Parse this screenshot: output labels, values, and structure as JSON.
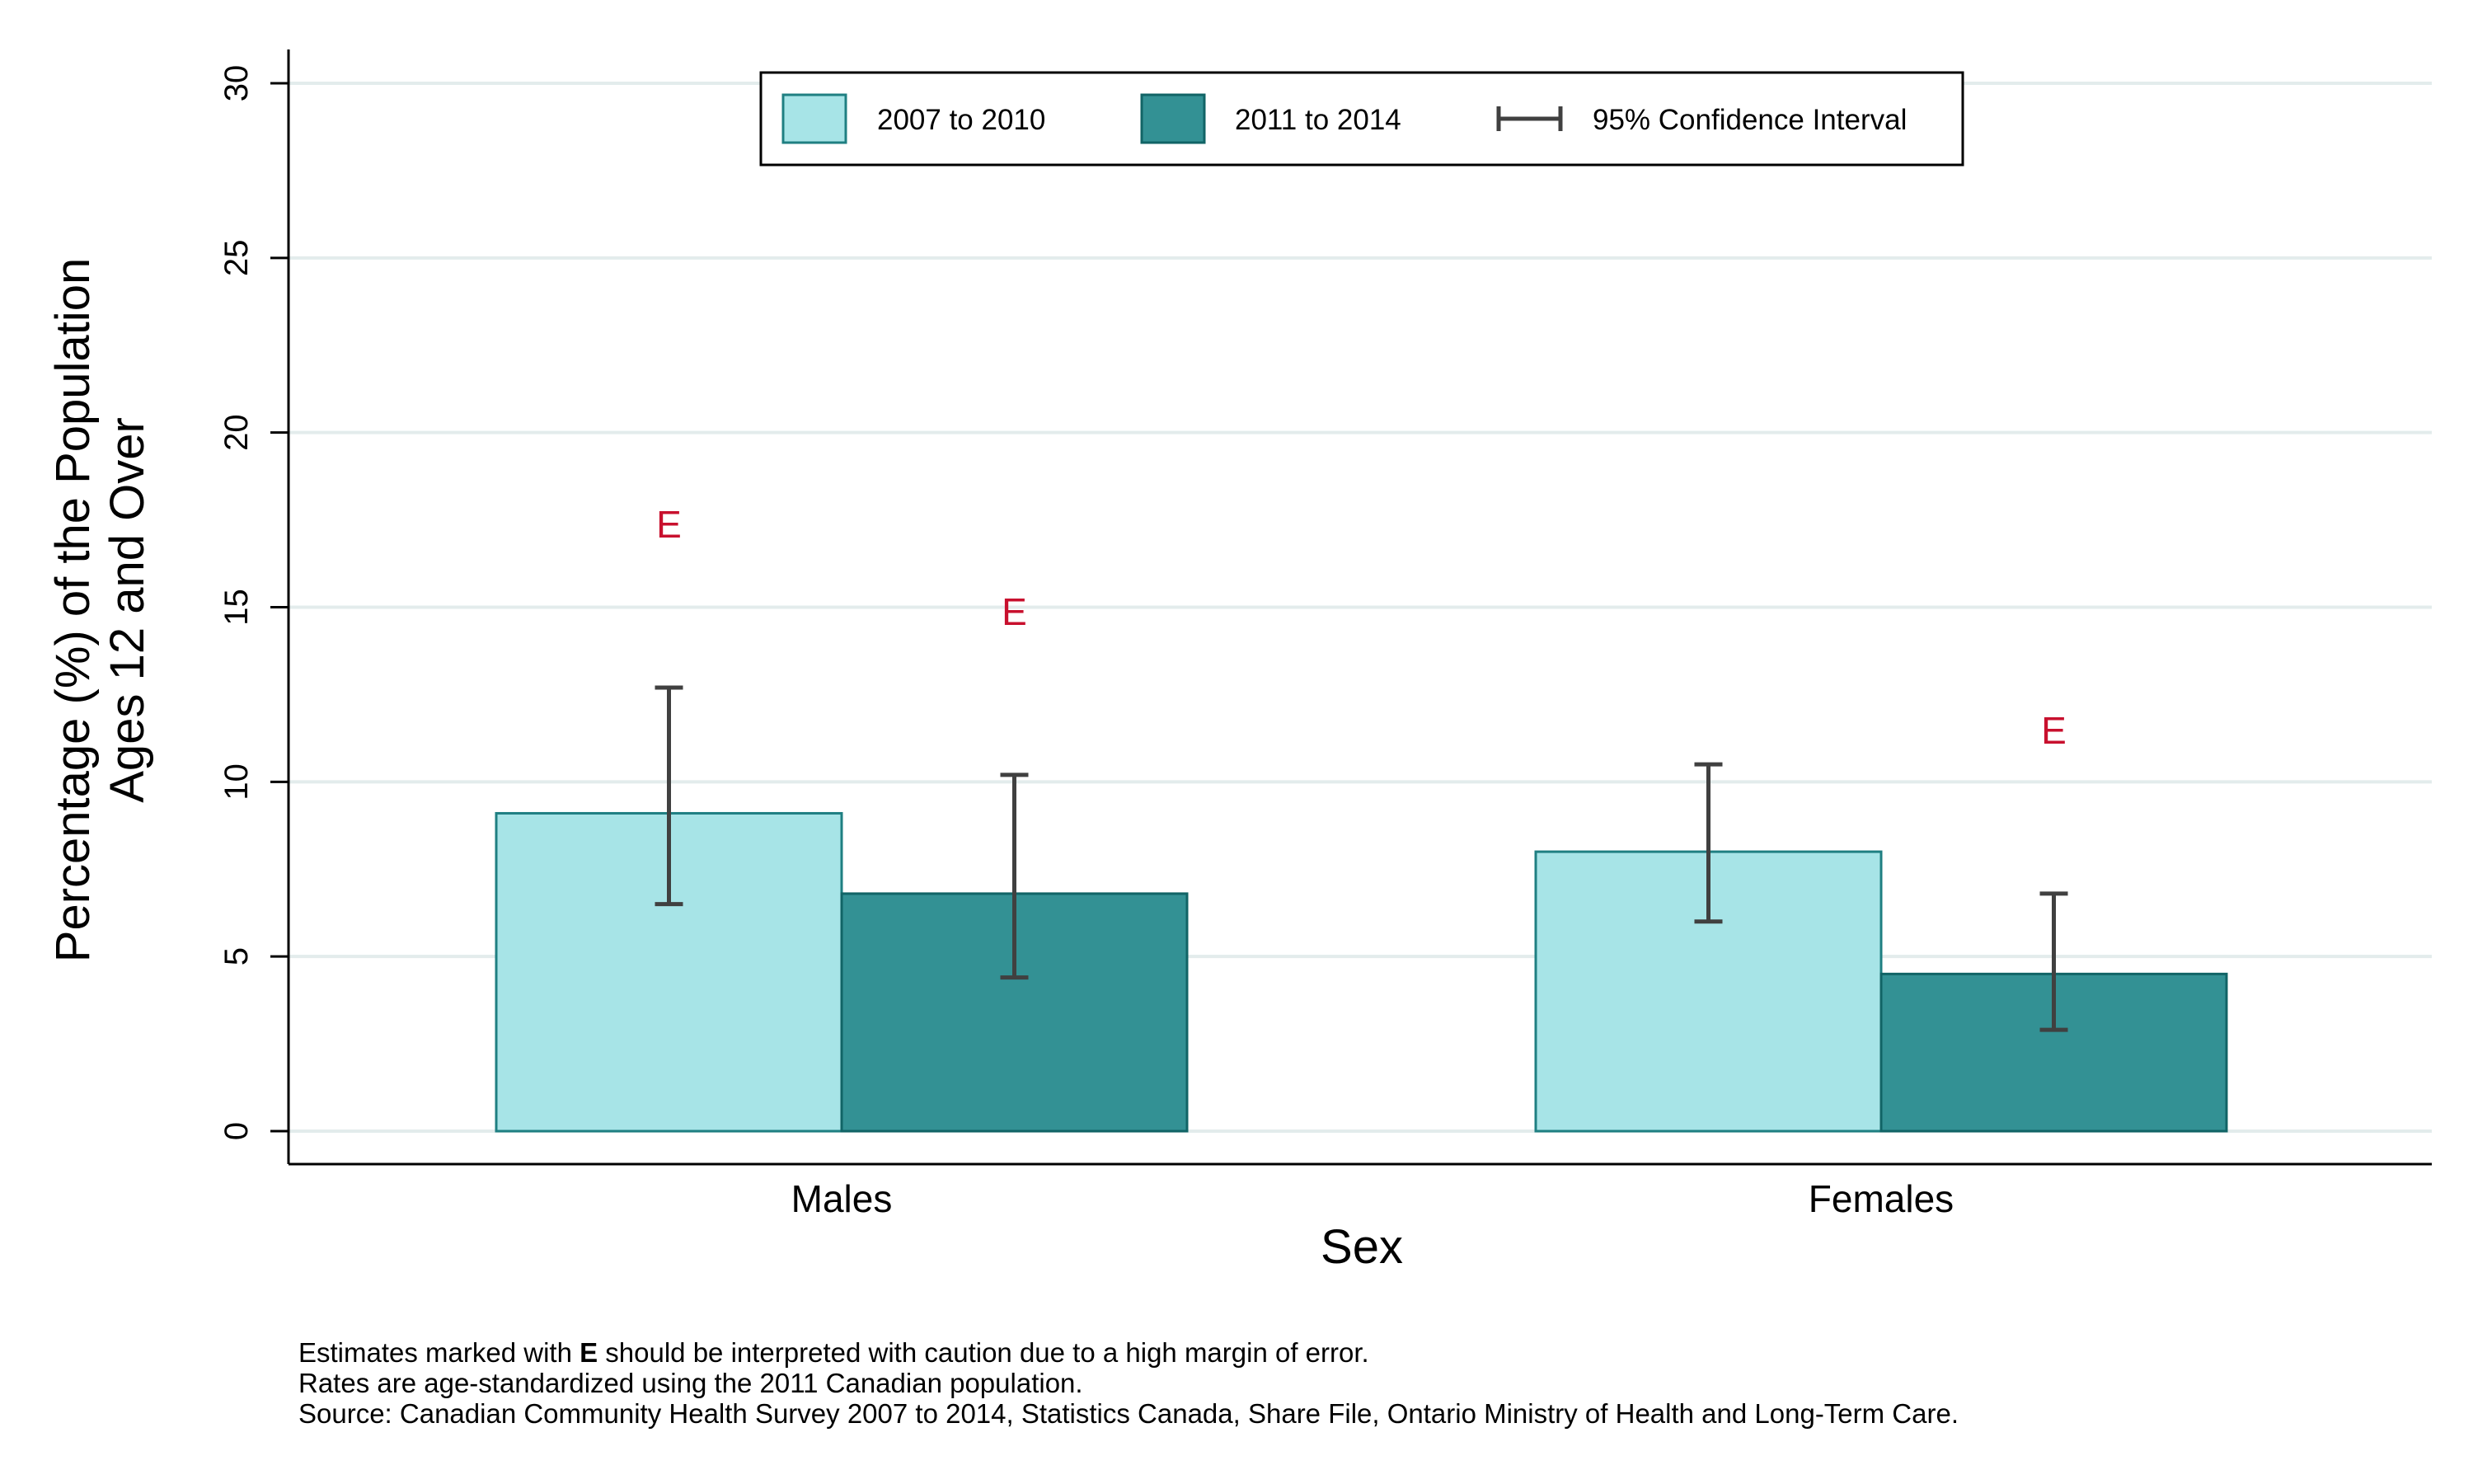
{
  "chart_data": {
    "type": "bar",
    "categories": [
      "Males",
      "Females"
    ],
    "series": [
      {
        "name": "2007 to 2010",
        "color": "#a7e4e7",
        "stroke": "#1f7f82",
        "values": [
          9.1,
          8.0
        ],
        "ci_low": [
          6.5,
          6.0
        ],
        "ci_high": [
          12.7,
          10.5
        ],
        "flags": [
          "E",
          ""
        ]
      },
      {
        "name": "2011 to 2014",
        "color": "#339194",
        "stroke": "#116466",
        "values": [
          6.8,
          4.5
        ],
        "ci_low": [
          4.4,
          2.9
        ],
        "ci_high": [
          10.2,
          6.8
        ],
        "flags": [
          "E",
          "E"
        ]
      }
    ],
    "xlabel": "Sex",
    "ylabel": [
      "Percentage (%) of the Population",
      "Ages 12 and Over"
    ],
    "ylim": [
      0,
      30
    ],
    "yticks": [
      0,
      5,
      10,
      15,
      20,
      25,
      30
    ],
    "grid": true,
    "legend": {
      "placement": "top-center",
      "ci_label": "95% Confidence Interval"
    },
    "flag_color": "#c8102e",
    "errorbar_color": "#404040"
  },
  "footnotes": {
    "line1_prefix": "Estimates marked with ",
    "line1_bold": "E",
    "line1_suffix": " should be interpreted with caution due to a high margin of error.",
    "line2": "Rates are age-standardized using the 2011 Canadian population.",
    "line3": "Source: Canadian Community Health Survey 2007 to 2014, Statistics Canada, Share File, Ontario Ministry of Health and Long-Term Care."
  }
}
